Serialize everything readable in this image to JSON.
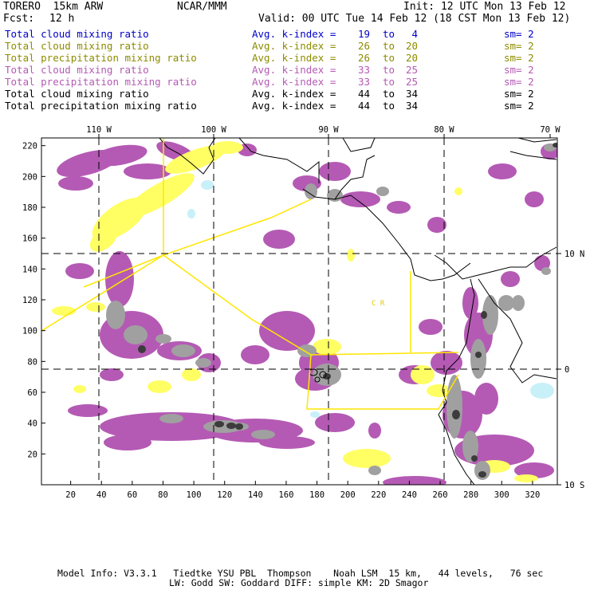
{
  "header": {
    "model": "TORERO  15km ARW",
    "org": "NCAR/MMM",
    "init": "Init: 12 UTC Mon 13 Feb 12",
    "fcst_label": "Fcst:",
    "fcst_value": "12 h",
    "valid": "Valid: 00 UTC Tue 14 Feb 12 (18 CST Mon 13 Feb 12)"
  },
  "legend": [
    {
      "field": "Total cloud mixing ratio",
      "avg": "Avg. k-index =",
      "from": "19",
      "to_word": "to",
      "to": "4",
      "sm": "sm= 2",
      "color": "#0000c8"
    },
    {
      "field": "Total cloud mixing ratio",
      "avg": "Avg. k-index =",
      "from": "26",
      "to_word": "to",
      "to": "20",
      "sm": "sm= 2",
      "color": "#8c8c00"
    },
    {
      "field": "Total precipitation mixing ratio",
      "avg": "Avg. k-index =",
      "from": "26",
      "to_word": "to",
      "to": "20",
      "sm": "sm= 2",
      "color": "#8c8c00"
    },
    {
      "field": "Total cloud mixing ratio",
      "avg": "Avg. k-index =",
      "from": "33",
      "to_word": "to",
      "to": "25",
      "sm": "sm= 2",
      "color": "#b45ab4"
    },
    {
      "field": "Total precipitation mixing ratio",
      "avg": "Avg. k-index =",
      "from": "33",
      "to_word": "to",
      "to": "25",
      "sm": "sm= 2",
      "color": "#b45ab4"
    },
    {
      "field": "Total cloud mixing ratio",
      "avg": "Avg. k-index =",
      "from": "44",
      "to_word": "to",
      "to": "34",
      "sm": "sm= 2",
      "color": "#000000"
    },
    {
      "field": "Total precipitation mixing ratio",
      "avg": "Avg. k-index =",
      "from": "44",
      "to_word": "to",
      "to": "34",
      "sm": "sm= 2",
      "color": "#000000"
    }
  ],
  "map": {
    "lon_labels": [
      "110 W",
      "100 W",
      "90 W",
      "80 W",
      "70 W"
    ],
    "lat_labels": [
      "10 N",
      "0",
      "10 S"
    ],
    "y_ticks": [
      "220",
      "200",
      "180",
      "160",
      "140",
      "120",
      "100",
      "80",
      "60",
      "40",
      "20"
    ],
    "x_ticks": [
      "20",
      "40",
      "60",
      "80",
      "100",
      "120",
      "140",
      "160",
      "180",
      "200",
      "220",
      "240",
      "260",
      "280",
      "300",
      "320"
    ],
    "region_label": "C R",
    "colors": {
      "purple": "#b45ab4",
      "yellow": "#ffff64",
      "gray": "#a0a0a0",
      "dark": "#3c3c3c",
      "cyan": "#c8f0f8",
      "outline": "#ffe600"
    }
  },
  "footer": {
    "line1": "Model Info: V3.3.1   Tiedtke YSU PBL  Thompson    Noah LSM  15 km,   44 levels,   76 sec",
    "line2": "LW: Godd SW: Goddard DIFF: simple KM: 2D Smagor"
  }
}
